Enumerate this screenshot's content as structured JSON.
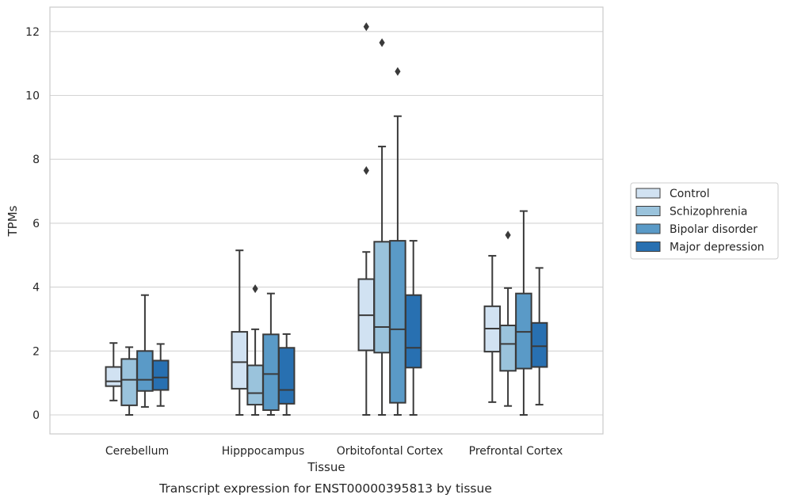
{
  "chart_data": {
    "type": "box",
    "xlabel": "Tissue",
    "ylabel": "TPMs",
    "caption": "Transcript expression for ENST00000395813 by tissue",
    "ylim": [
      -0.6,
      12.8
    ],
    "yticks": [
      0,
      2,
      4,
      6,
      8,
      10,
      12
    ],
    "grid": "horizontal",
    "legend_position": "right",
    "categories": [
      "Cerebellum",
      "Hipppocampus",
      "Orbitofontal Cortex",
      "Prefrontal Cortex"
    ],
    "series": [
      {
        "name": "Control",
        "color": "#d1e2f2",
        "boxes": [
          {
            "whislo": 0.45,
            "q1": 0.9,
            "med": 1.05,
            "q3": 1.5,
            "whishi": 2.25,
            "fliers": []
          },
          {
            "whislo": 0.0,
            "q1": 0.82,
            "med": 1.65,
            "q3": 2.6,
            "whishi": 5.15,
            "fliers": []
          },
          {
            "whislo": 0.0,
            "q1": 2.02,
            "med": 3.12,
            "q3": 4.25,
            "whishi": 5.1,
            "fliers": [
              7.65,
              12.15
            ]
          },
          {
            "whislo": 0.4,
            "q1": 1.98,
            "med": 2.7,
            "q3": 3.4,
            "whishi": 4.98,
            "fliers": []
          }
        ]
      },
      {
        "name": "Schizophrenia",
        "color": "#9ac3dc",
        "boxes": [
          {
            "whislo": 0.0,
            "q1": 0.3,
            "med": 1.1,
            "q3": 1.75,
            "whishi": 2.12,
            "fliers": []
          },
          {
            "whislo": 0.0,
            "q1": 0.32,
            "med": 0.68,
            "q3": 1.55,
            "whishi": 2.68,
            "fliers": [
              3.95
            ]
          },
          {
            "whislo": 0.0,
            "q1": 1.95,
            "med": 2.75,
            "q3": 5.42,
            "whishi": 8.4,
            "fliers": [
              11.65
            ]
          },
          {
            "whislo": 0.28,
            "q1": 1.38,
            "med": 2.22,
            "q3": 2.8,
            "whishi": 3.97,
            "fliers": [
              5.63
            ]
          }
        ]
      },
      {
        "name": "Bipolar disorder",
        "color": "#5a9ac7",
        "boxes": [
          {
            "whislo": 0.25,
            "q1": 0.75,
            "med": 1.1,
            "q3": 2.0,
            "whishi": 3.75,
            "fliers": []
          },
          {
            "whislo": 0.0,
            "q1": 0.15,
            "med": 1.28,
            "q3": 2.52,
            "whishi": 3.8,
            "fliers": []
          },
          {
            "whislo": 0.0,
            "q1": 0.38,
            "med": 2.68,
            "q3": 5.45,
            "whishi": 9.35,
            "fliers": [
              10.75
            ]
          },
          {
            "whislo": 0.0,
            "q1": 1.45,
            "med": 2.6,
            "q3": 3.8,
            "whishi": 6.38,
            "fliers": []
          }
        ]
      },
      {
        "name": "Major depression",
        "color": "#2870b1",
        "boxes": [
          {
            "whislo": 0.28,
            "q1": 0.78,
            "med": 1.17,
            "q3": 1.7,
            "whishi": 2.22,
            "fliers": []
          },
          {
            "whislo": 0.0,
            "q1": 0.35,
            "med": 0.78,
            "q3": 2.1,
            "whishi": 2.53,
            "fliers": []
          },
          {
            "whislo": 0.0,
            "q1": 1.48,
            "med": 2.1,
            "q3": 3.75,
            "whishi": 5.45,
            "fliers": []
          },
          {
            "whislo": 0.32,
            "q1": 1.5,
            "med": 2.15,
            "q3": 2.88,
            "whishi": 4.6,
            "fliers": []
          }
        ]
      }
    ]
  }
}
